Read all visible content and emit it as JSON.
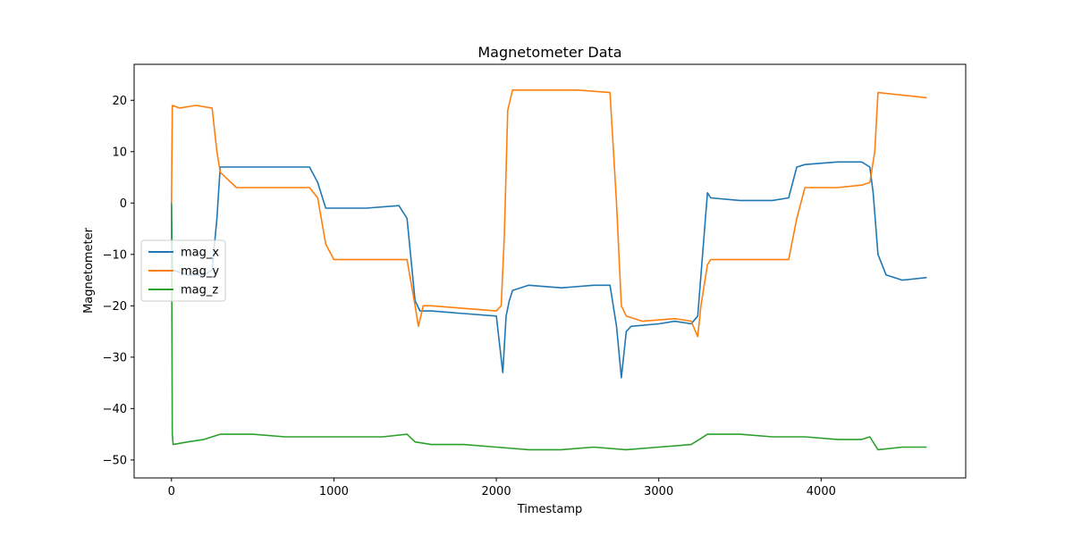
{
  "chart_data": {
    "type": "line",
    "title": "Magnetometer Data",
    "xlabel": "Timestamp",
    "ylabel": "Magnetometer",
    "xlim": [
      -230,
      4890
    ],
    "ylim": [
      -53.5,
      27
    ],
    "xticks": [
      0,
      1000,
      2000,
      3000,
      4000
    ],
    "xtick_labels": [
      "0",
      "1000",
      "2000",
      "3000",
      "4000"
    ],
    "yticks": [
      -50,
      -40,
      -30,
      -20,
      -10,
      0,
      10,
      20
    ],
    "ytick_labels": [
      "−50",
      "−40",
      "−30",
      "−20",
      "−10",
      "0",
      "10",
      "20"
    ],
    "grid": false,
    "legend_position": "center-left",
    "series": [
      {
        "name": "mag_x",
        "color": "#1f77b4",
        "x": [
          0,
          5,
          100,
          200,
          250,
          280,
          300,
          320,
          500,
          850,
          900,
          950,
          1000,
          1200,
          1400,
          1450,
          1500,
          1530,
          1600,
          1800,
          2000,
          2040,
          2060,
          2080,
          2100,
          2200,
          2400,
          2600,
          2700,
          2740,
          2770,
          2800,
          2830,
          3000,
          3100,
          3200,
          3240,
          3300,
          3320,
          3500,
          3700,
          3800,
          3850,
          3900,
          4100,
          4250,
          4300,
          4320,
          4350,
          4400,
          4500,
          4650
        ],
        "y": [
          0,
          -13,
          -14,
          -14,
          -13,
          -3,
          7,
          7,
          7,
          7,
          4,
          -1,
          -1,
          -1,
          -0.5,
          -3,
          -19,
          -21,
          -21,
          -21.5,
          -22,
          -33,
          -22,
          -19,
          -17,
          -16,
          -16.5,
          -16,
          -16,
          -24,
          -34,
          -25,
          -24,
          -23.5,
          -23,
          -23.5,
          -22,
          2,
          1,
          0.5,
          0.5,
          1,
          7,
          7.5,
          8,
          8,
          7,
          2,
          -10,
          -14,
          -15,
          -14.5
        ]
      },
      {
        "name": "mag_y",
        "color": "#ff7f0e",
        "x": [
          0,
          5,
          50,
          150,
          250,
          280,
          300,
          400,
          600,
          850,
          900,
          950,
          1000,
          1200,
          1450,
          1500,
          1520,
          1550,
          1600,
          1800,
          2000,
          2030,
          2050,
          2070,
          2100,
          2300,
          2500,
          2700,
          2740,
          2770,
          2800,
          2900,
          3100,
          3200,
          3240,
          3260,
          3300,
          3320,
          3500,
          3700,
          3800,
          3850,
          3900,
          4100,
          4250,
          4300,
          4330,
          4350,
          4500,
          4650
        ],
        "y": [
          0,
          19,
          18.5,
          19,
          18.5,
          10,
          6,
          3,
          3,
          3,
          1,
          -8,
          -11,
          -11,
          -11,
          -20,
          -24,
          -20,
          -20,
          -20.5,
          -21,
          -20,
          -6,
          18,
          22,
          22,
          22,
          21.5,
          0,
          -20,
          -22,
          -23,
          -22.5,
          -23,
          -26,
          -20,
          -12,
          -11,
          -11,
          -11,
          -11,
          -3,
          3,
          3,
          3.5,
          4,
          10,
          21.5,
          21,
          20.5
        ]
      },
      {
        "name": "mag_z",
        "color": "#2ca02c",
        "x": [
          0,
          5,
          10,
          100,
          200,
          300,
          500,
          700,
          900,
          1100,
          1300,
          1450,
          1500,
          1600,
          1800,
          2000,
          2200,
          2400,
          2600,
          2800,
          3000,
          3200,
          3250,
          3300,
          3500,
          3700,
          3900,
          4100,
          4250,
          4300,
          4350,
          4500,
          4650
        ],
        "y": [
          0,
          -45,
          -47,
          -46.5,
          -46,
          -45,
          -45,
          -45.5,
          -45.5,
          -45.5,
          -45.5,
          -45,
          -46.5,
          -47,
          -47,
          -47.5,
          -48,
          -48,
          -47.5,
          -48,
          -47.5,
          -47,
          -46,
          -45,
          -45,
          -45.5,
          -45.5,
          -46,
          -46,
          -45.5,
          -48,
          -47.5,
          -47.5
        ]
      }
    ]
  }
}
